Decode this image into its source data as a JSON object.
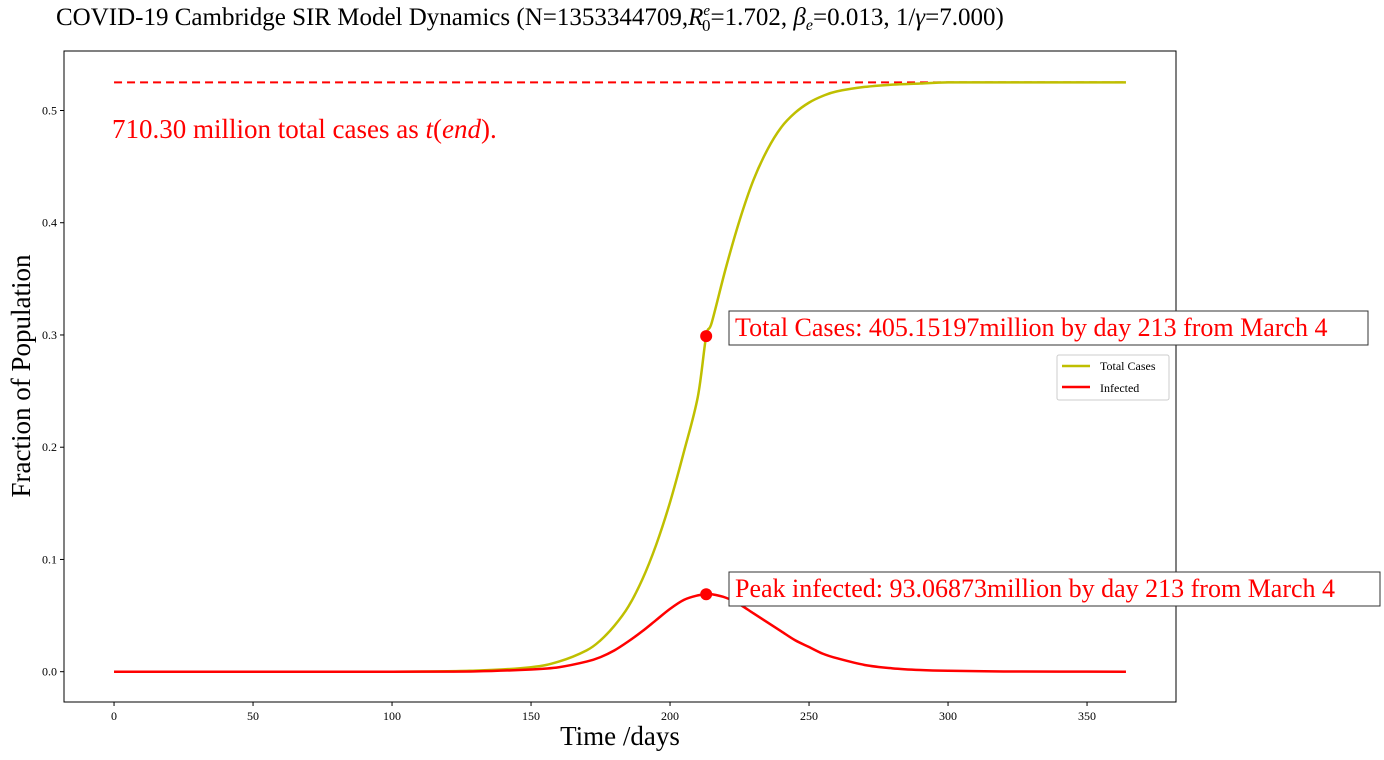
{
  "chart_data": {
    "type": "line",
    "title": {
      "prefix": "COVID-19 Cambridge SIR Model Dynamics (N=1353344709,",
      "r0_symbol": "R",
      "r0_sup": "e",
      "r0_sub": "0",
      "r0_value": "=1.702, ",
      "beta_symbol": "β",
      "beta_sub": "e",
      "beta_value": "=0.013, 1/",
      "gamma_symbol": "γ",
      "gamma_value": "=7.000)"
    },
    "xlabel": "Time /days",
    "ylabel": "Fraction of Population",
    "xlim": [
      -18,
      382
    ],
    "ylim": [
      -0.027,
      0.553
    ],
    "xticks": [
      0,
      50,
      100,
      150,
      200,
      250,
      300,
      350
    ],
    "xtick_labels": [
      "0",
      "50",
      "100",
      "150",
      "200",
      "250",
      "300",
      "350"
    ],
    "yticks": [
      0.0,
      0.1,
      0.2,
      0.3,
      0.4,
      0.5
    ],
    "ytick_labels": [
      "0.0",
      "0.1",
      "0.2",
      "0.3",
      "0.4",
      "0.5"
    ],
    "grid": false,
    "legend_placement": "center-right",
    "series": [
      {
        "name": "Total Cases",
        "color": "#bfbf00",
        "x": [
          0,
          100,
          130,
          150,
          160,
          170,
          175,
          180,
          185,
          190,
          195,
          200,
          205,
          210,
          213,
          215,
          220,
          225,
          230,
          235,
          240,
          245,
          250,
          255,
          260,
          270,
          280,
          290,
          300,
          320,
          340,
          364
        ],
        "values": [
          0.0,
          0.0,
          0.001,
          0.004,
          0.009,
          0.019,
          0.028,
          0.041,
          0.058,
          0.082,
          0.113,
          0.151,
          0.196,
          0.245,
          0.299,
          0.311,
          0.359,
          0.402,
          0.438,
          0.465,
          0.485,
          0.498,
          0.507,
          0.513,
          0.517,
          0.521,
          0.523,
          0.524,
          0.525,
          0.525,
          0.525,
          0.525
        ]
      },
      {
        "name": "Infected",
        "color": "#ff0000",
        "x": [
          0,
          100,
          130,
          150,
          160,
          170,
          175,
          180,
          185,
          190,
          195,
          200,
          205,
          210,
          213,
          215,
          220,
          225,
          230,
          235,
          240,
          245,
          250,
          255,
          260,
          270,
          280,
          290,
          300,
          320,
          340,
          364
        ],
        "values": [
          0.0,
          0.0,
          0.0003,
          0.002,
          0.004,
          0.009,
          0.013,
          0.019,
          0.027,
          0.036,
          0.046,
          0.056,
          0.064,
          0.068,
          0.069,
          0.069,
          0.066,
          0.06,
          0.052,
          0.044,
          0.036,
          0.028,
          0.022,
          0.016,
          0.012,
          0.006,
          0.003,
          0.0015,
          0.0008,
          0.0002,
          0.0001,
          0.0
        ]
      }
    ],
    "total_line": {
      "y": 0.525,
      "x_start": 0,
      "x_end": 364,
      "color": "#ff0000"
    },
    "markers": [
      {
        "x": 213,
        "y": 0.299,
        "color": "#ff0000"
      },
      {
        "x": 213,
        "y": 0.069,
        "color": "#ff0000"
      }
    ],
    "annotations": {
      "total_end": {
        "prefix": "710.30 million total cases as ",
        "t": "t",
        "open": "(",
        "end": "end",
        "close": ")."
      },
      "total_cases_label": "Total Cases: 405.15197million by day 213 from March 4",
      "peak_label": "Peak infected: 93.06873million by day 213 from March 4"
    }
  }
}
